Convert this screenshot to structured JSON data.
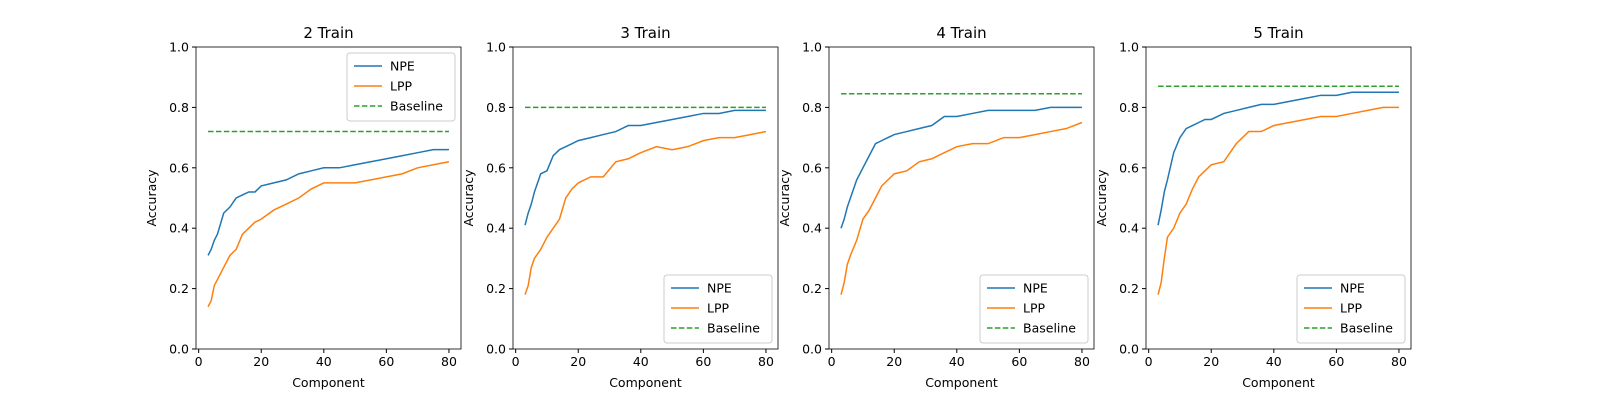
{
  "chart_data": [
    {
      "type": "line",
      "title": "2 Train",
      "x_label": "Component",
      "y_label": "Accuracy",
      "x": [
        3,
        4,
        5,
        6,
        8,
        10,
        12,
        14,
        16,
        18,
        20,
        24,
        28,
        32,
        36,
        40,
        45,
        50,
        55,
        60,
        65,
        70,
        75,
        80
      ],
      "series": [
        {
          "name": "NPE",
          "color": "#1f77b4",
          "values": [
            0.31,
            0.33,
            0.36,
            0.38,
            0.45,
            0.47,
            0.5,
            0.51,
            0.52,
            0.52,
            0.54,
            0.55,
            0.56,
            0.58,
            0.59,
            0.6,
            0.6,
            0.61,
            0.62,
            0.63,
            0.64,
            0.65,
            0.66,
            0.66
          ]
        },
        {
          "name": "LPP",
          "color": "#ff7f0e",
          "values": [
            0.14,
            0.16,
            0.21,
            0.23,
            0.27,
            0.31,
            0.33,
            0.38,
            0.4,
            0.42,
            0.43,
            0.46,
            0.48,
            0.5,
            0.53,
            0.55,
            0.55,
            0.55,
            0.56,
            0.57,
            0.58,
            0.6,
            0.61,
            0.62
          ]
        },
        {
          "name": "Baseline",
          "color": "#2ca02c",
          "linestyle": "dashed",
          "x": [
            3,
            80
          ],
          "values": [
            0.72,
            0.72
          ]
        }
      ],
      "xlim": [
        -0.85,
        83.85
      ],
      "xticks": [
        0,
        20,
        40,
        60,
        80
      ],
      "ylim": [
        0,
        1
      ],
      "yticks": [
        {
          "value": 0,
          "label": "0.0"
        },
        0.2,
        0.4,
        0.6,
        0.8,
        {
          "value": 1,
          "label": "1.0"
        }
      ],
      "legend": "upper right"
    },
    {
      "type": "line",
      "title": "3 Train",
      "x_label": "Component",
      "y_label": "Accuracy",
      "x": [
        3,
        4,
        5,
        6,
        8,
        10,
        12,
        14,
        16,
        18,
        20,
        24,
        28,
        32,
        36,
        40,
        45,
        50,
        55,
        60,
        65,
        70,
        75,
        80
      ],
      "series": [
        {
          "name": "NPE",
          "color": "#1f77b4",
          "values": [
            0.41,
            0.45,
            0.48,
            0.52,
            0.58,
            0.59,
            0.64,
            0.66,
            0.67,
            0.68,
            0.69,
            0.7,
            0.71,
            0.72,
            0.74,
            0.74,
            0.75,
            0.76,
            0.77,
            0.78,
            0.78,
            0.79,
            0.79,
            0.79
          ]
        },
        {
          "name": "LPP",
          "color": "#ff7f0e",
          "values": [
            0.18,
            0.21,
            0.27,
            0.3,
            0.33,
            0.37,
            0.4,
            0.43,
            0.5,
            0.53,
            0.55,
            0.57,
            0.57,
            0.62,
            0.63,
            0.65,
            0.67,
            0.66,
            0.67,
            0.69,
            0.7,
            0.7,
            0.71,
            0.72
          ]
        },
        {
          "name": "Baseline",
          "color": "#2ca02c",
          "linestyle": "dashed",
          "x": [
            3,
            80
          ],
          "values": [
            0.8,
            0.8
          ]
        }
      ],
      "xlim": [
        -0.85,
        83.85
      ],
      "xticks": [
        0,
        20,
        40,
        60,
        80
      ],
      "ylim": [
        0,
        1
      ],
      "yticks": [
        {
          "value": 0,
          "label": "0.0"
        },
        0.2,
        0.4,
        0.6,
        0.8,
        {
          "value": 1,
          "label": "1.0"
        }
      ],
      "legend": "lower right"
    },
    {
      "type": "line",
      "title": "4 Train",
      "x_label": "Component",
      "y_label": "Accuracy",
      "x": [
        3,
        4,
        5,
        6,
        8,
        10,
        12,
        14,
        16,
        18,
        20,
        24,
        28,
        32,
        36,
        40,
        45,
        50,
        55,
        60,
        65,
        70,
        75,
        80
      ],
      "series": [
        {
          "name": "NPE",
          "color": "#1f77b4",
          "values": [
            0.4,
            0.43,
            0.47,
            0.5,
            0.56,
            0.6,
            0.64,
            0.68,
            0.69,
            0.7,
            0.71,
            0.72,
            0.73,
            0.74,
            0.77,
            0.77,
            0.78,
            0.79,
            0.79,
            0.79,
            0.79,
            0.8,
            0.8,
            0.8
          ]
        },
        {
          "name": "LPP",
          "color": "#ff7f0e",
          "values": [
            0.18,
            0.22,
            0.28,
            0.31,
            0.36,
            0.43,
            0.46,
            0.5,
            0.54,
            0.56,
            0.58,
            0.59,
            0.62,
            0.63,
            0.65,
            0.67,
            0.68,
            0.68,
            0.7,
            0.7,
            0.71,
            0.72,
            0.73,
            0.75
          ]
        },
        {
          "name": "Baseline",
          "color": "#2ca02c",
          "linestyle": "dashed",
          "x": [
            3,
            80
          ],
          "values": [
            0.845,
            0.845
          ]
        }
      ],
      "xlim": [
        -0.85,
        83.85
      ],
      "xticks": [
        0,
        20,
        40,
        60,
        80
      ],
      "ylim": [
        0,
        1
      ],
      "yticks": [
        {
          "value": 0,
          "label": "0.0"
        },
        0.2,
        0.4,
        0.6,
        0.8,
        {
          "value": 1,
          "label": "1.0"
        }
      ],
      "legend": "lower right"
    },
    {
      "type": "line",
      "title": "5 Train",
      "x_label": "Component",
      "y_label": "Accuracy",
      "x": [
        3,
        4,
        5,
        6,
        8,
        10,
        12,
        14,
        16,
        18,
        20,
        24,
        28,
        32,
        36,
        40,
        45,
        50,
        55,
        60,
        65,
        70,
        75,
        80
      ],
      "series": [
        {
          "name": "NPE",
          "color": "#1f77b4",
          "values": [
            0.41,
            0.46,
            0.52,
            0.56,
            0.65,
            0.7,
            0.73,
            0.74,
            0.75,
            0.76,
            0.76,
            0.78,
            0.79,
            0.8,
            0.81,
            0.81,
            0.82,
            0.83,
            0.84,
            0.84,
            0.85,
            0.85,
            0.85,
            0.85
          ]
        },
        {
          "name": "LPP",
          "color": "#ff7f0e",
          "values": [
            0.18,
            0.22,
            0.3,
            0.37,
            0.4,
            0.45,
            0.48,
            0.53,
            0.57,
            0.59,
            0.61,
            0.62,
            0.68,
            0.72,
            0.72,
            0.74,
            0.75,
            0.76,
            0.77,
            0.77,
            0.78,
            0.79,
            0.8,
            0.8
          ]
        },
        {
          "name": "Baseline",
          "color": "#2ca02c",
          "linestyle": "dashed",
          "x": [
            3,
            80
          ],
          "values": [
            0.87,
            0.87
          ]
        }
      ],
      "xlim": [
        -0.85,
        83.85
      ],
      "xticks": [
        0,
        20,
        40,
        60,
        80
      ],
      "ylim": [
        0,
        1
      ],
      "yticks": [
        {
          "value": 0,
          "label": "0.0"
        },
        0.2,
        0.4,
        0.6,
        0.8,
        {
          "value": 1,
          "label": "1.0"
        }
      ],
      "legend": "lower right"
    }
  ]
}
